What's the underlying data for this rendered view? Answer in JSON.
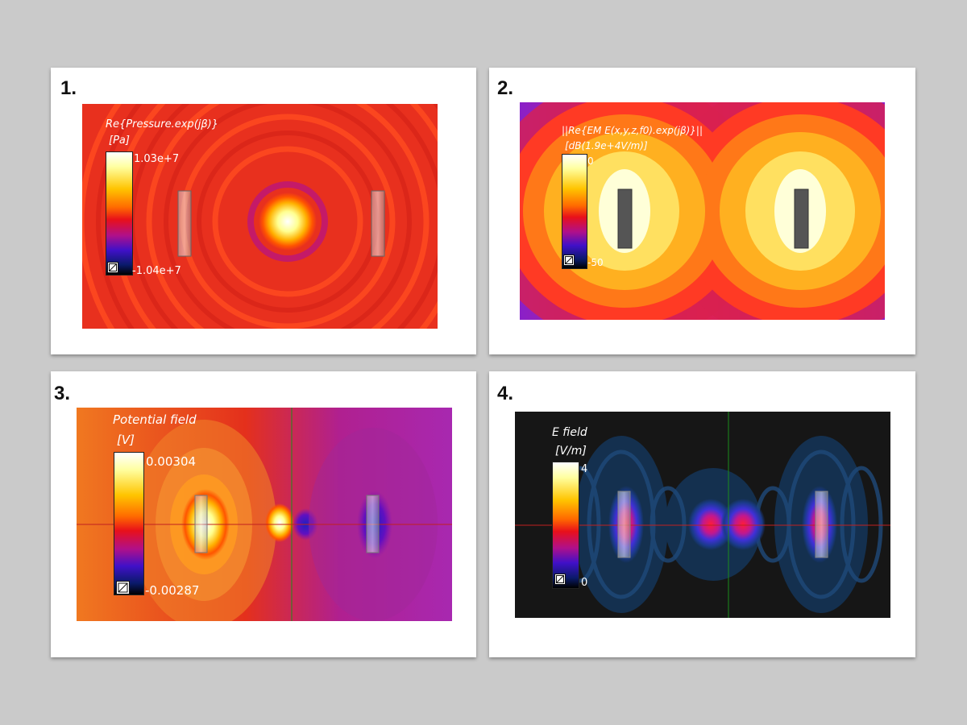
{
  "panels": [
    {
      "number": "1.",
      "title": "Re{Pressure.exp(jβ)}",
      "unit": "[Pa]",
      "max": "1.03e+7",
      "min": "-1.04e+7"
    },
    {
      "number": "2.",
      "title": "||Re{EM E(x,y,z,f0).exp(jβ)}||",
      "unit": "[dB(1.9e+4V/m)]",
      "max": "0",
      "min": "-50"
    },
    {
      "number": "3.",
      "title": "Potential field",
      "unit": "[V]",
      "max": "0.00304",
      "min": "-0.00287"
    },
    {
      "number": "4.",
      "title": "E field",
      "unit": "[V/m]",
      "max": "4",
      "min": "0"
    }
  ],
  "colors": {
    "background": "#cacaca",
    "panel1_field": "#e8301e",
    "panel2_field": "#7a2bd0",
    "panel3_field": "#e33a22",
    "panel4_field": "#161616",
    "axis_green": "#1c8c1c",
    "axis_red": "#c02020"
  },
  "icons": {
    "colorbar_button": "colorbar-toggle-icon"
  }
}
